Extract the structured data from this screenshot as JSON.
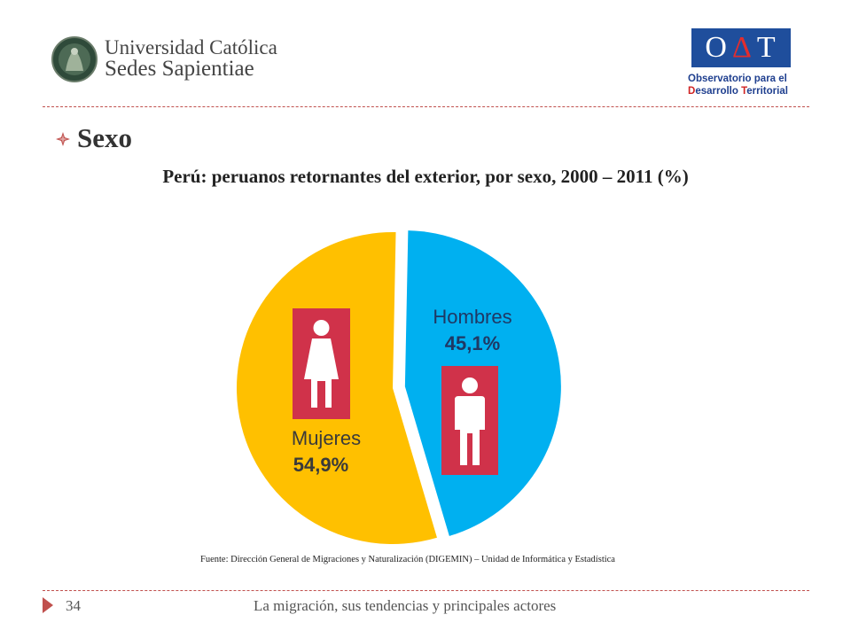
{
  "header": {
    "university_name_line1": "Universidad Católica",
    "university_name_line2": "Sedes Sapientiae",
    "oat_logo_letters": [
      "O",
      "Δ",
      "T"
    ],
    "oat_line1": "Observatorio para el",
    "oat_line2_initial": "D",
    "oat_line2_rest": "esarrollo ",
    "oat_line2_initial2": "T",
    "oat_line2_rest2": "erritorial"
  },
  "section": {
    "bullet_icon": "diamond-bullet-icon",
    "title": "Sexo"
  },
  "chart_data": {
    "type": "pie",
    "title": "Perú: peruanos retornantes del exterior, por sexo, 2000 – 2011 (%)",
    "slices": [
      {
        "name": "Hombres",
        "value": 45.1,
        "value_label": "45,1%",
        "color": "#00b0f0",
        "exploded": true,
        "icon": "male-person-icon"
      },
      {
        "name": "Mujeres",
        "value": 54.9,
        "value_label": "54,9%",
        "color": "#ffc000",
        "exploded": false,
        "icon": "female-person-icon"
      }
    ],
    "icon_background_color": "#d0324a"
  },
  "source": "Fuente: Dirección General de Migraciones y Naturalización (DIGEMIN) – Unidad de Informática y Estadística",
  "footer": {
    "page_number": "34",
    "text": "La migración, sus tendencias y principales actores"
  },
  "colors": {
    "divider": "#c0504d",
    "accent": "#c0504d"
  }
}
